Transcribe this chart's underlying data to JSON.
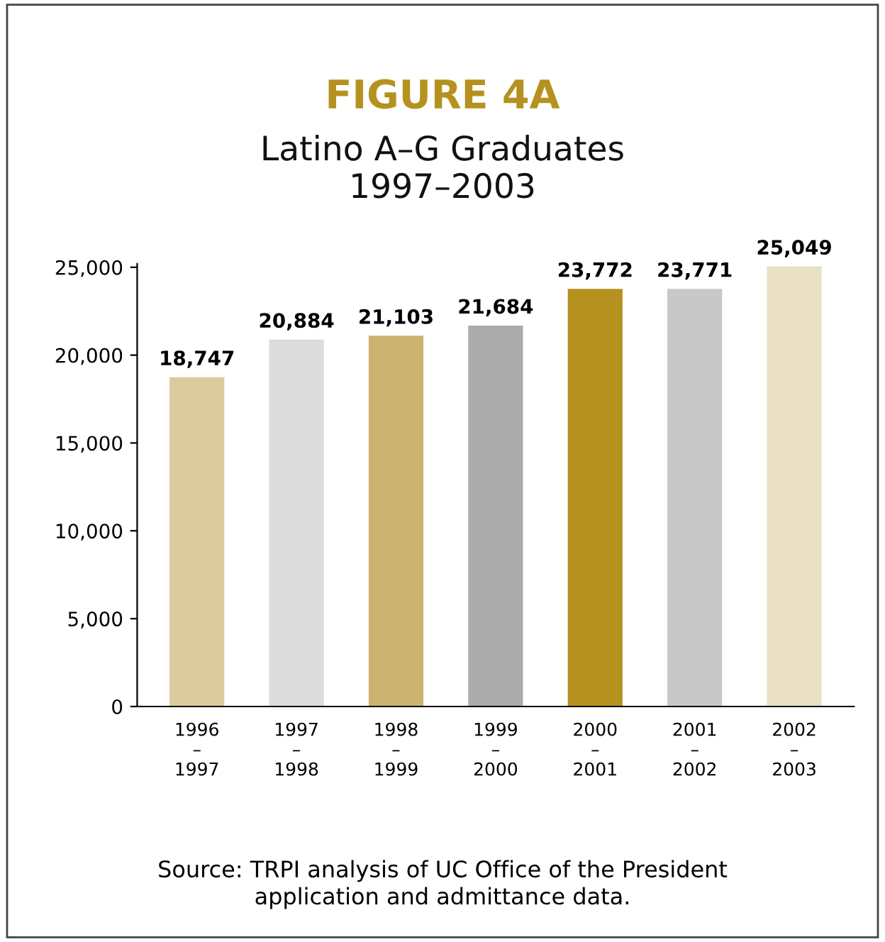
{
  "chart_data": {
    "type": "bar",
    "title": "FIGURE 4A",
    "subtitle": "Latino A–G Graduates\n1997–2003",
    "categories": [
      "1996\n–\n1997",
      "1997\n–\n1998",
      "1998\n–\n1999",
      "1999\n–\n2000",
      "2000\n–\n2001",
      "2001\n–\n2002",
      "2002\n–\n2003"
    ],
    "values": [
      18747,
      20884,
      21103,
      21684,
      23772,
      23771,
      25049
    ],
    "colors": [
      "#dccb9c",
      "#dcdcdc",
      "#cbb36f",
      "#ababab",
      "#b5921f",
      "#c8c8c8",
      "#e9e0c5"
    ],
    "value_labels": [
      "18,747",
      "20,884",
      "21,103",
      "21,684",
      "23,772",
      "23,771",
      "25,049"
    ],
    "ylim": [
      0,
      25200
    ],
    "yticks": [
      {
        "value": 0,
        "label": "0"
      },
      {
        "value": 5000,
        "label": "5,000"
      },
      {
        "value": 10000,
        "label": "10,000"
      },
      {
        "value": 15000,
        "label": "15,000"
      },
      {
        "value": 20000,
        "label": "20,000"
      },
      {
        "value": 25000,
        "label": "25,000"
      }
    ],
    "grid": false,
    "legend": false,
    "annotations": [
      "Source: TRPI analysis of UC Office of the President\napplication and admittance data."
    ]
  }
}
